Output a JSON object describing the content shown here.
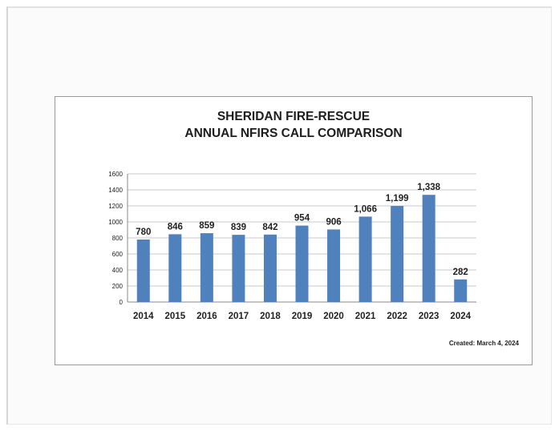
{
  "chart_data": {
    "type": "bar",
    "title": [
      "SHERIDAN FIRE-RESCUE",
      "ANNUAL NFIRS CALL COMPARISON"
    ],
    "categories": [
      "2014",
      "2015",
      "2016",
      "2017",
      "2018",
      "2019",
      "2020",
      "2021",
      "2022",
      "2023",
      "2024"
    ],
    "values": [
      780,
      846,
      859,
      839,
      842,
      954,
      906,
      1066,
      1199,
      1338,
      282
    ],
    "value_labels": [
      "780",
      "846",
      "859",
      "839",
      "842",
      "954",
      "906",
      "1,066",
      "1,199",
      "1,338",
      "282"
    ],
    "yticks": [
      "0",
      "200",
      "400",
      "600",
      "800",
      "1000",
      "1200",
      "1400",
      "1600"
    ],
    "ylim": [
      0,
      1600
    ],
    "grid": true,
    "legend": "none",
    "bar_color": "#4f81bd"
  },
  "footer": {
    "created_text": "Created:  March 4, 2024"
  }
}
